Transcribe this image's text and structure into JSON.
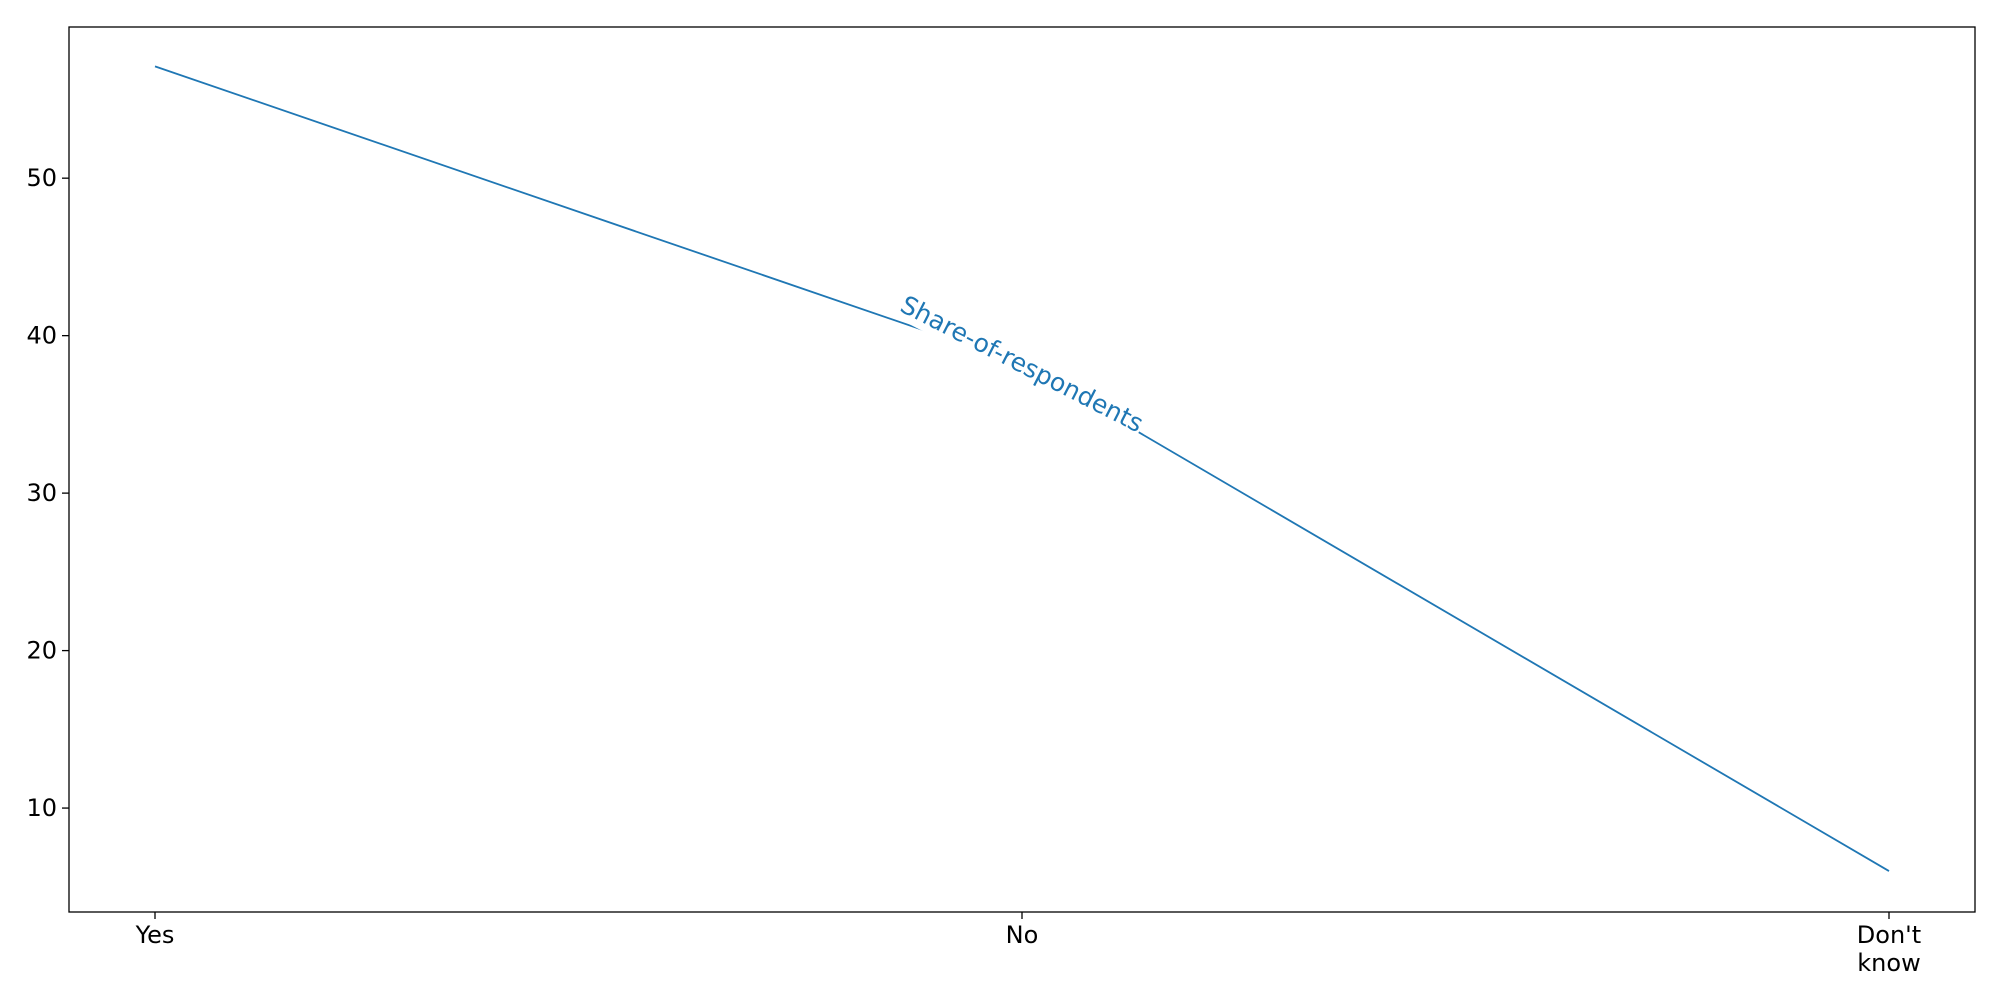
{
  "chart_data": {
    "type": "line",
    "categories": [
      "Yes",
      "No",
      "Don't know"
    ],
    "category_lines": [
      [
        "Yes"
      ],
      [
        "No"
      ],
      [
        "Don't",
        "know"
      ]
    ],
    "series": [
      {
        "name": "Share-of-respondents",
        "values": [
          57.1,
          38.2,
          6.0
        ],
        "color": "#1f77b4"
      }
    ],
    "ylim": [
      3.4,
      59.6
    ],
    "yticks": [
      10,
      20,
      30,
      40,
      50
    ],
    "grid": false,
    "legend": "none"
  }
}
